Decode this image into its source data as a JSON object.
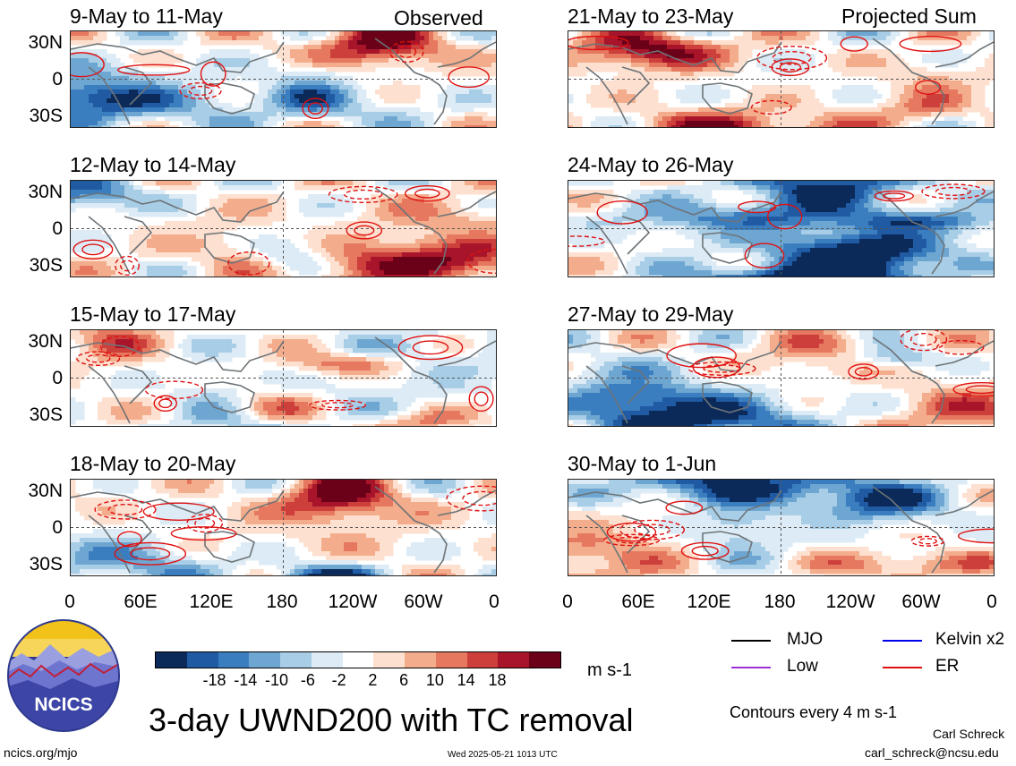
{
  "header": {
    "left_label": "Observed",
    "right_label": "Projected Sum"
  },
  "panels": [
    {
      "title": "9-May to 11-May",
      "seed": 11
    },
    {
      "title": "12-May to 14-May",
      "seed": 23
    },
    {
      "title": "15-May to 17-May",
      "seed": 37
    },
    {
      "title": "18-May to 20-May",
      "seed": 41
    },
    {
      "title": "21-May to 23-May",
      "seed": 53
    },
    {
      "title": "24-May to 26-May",
      "seed": 67
    },
    {
      "title": "27-May to 29-May",
      "seed": 71
    },
    {
      "title": "30-May to 1-Jun",
      "seed": 89
    }
  ],
  "lat_labels": [
    "30N",
    "0",
    "30S"
  ],
  "lon_labels": [
    "0",
    "60E",
    "120E",
    "180",
    "120W",
    "60W",
    "0"
  ],
  "colorbar": {
    "colors": [
      "#0b2a59",
      "#1f5aa3",
      "#3b7ec0",
      "#6ea6d2",
      "#a8cde6",
      "#dcebf5",
      "#ffffff",
      "#fde0cf",
      "#f4ad8c",
      "#e5785f",
      "#cc3f3b",
      "#a8142a",
      "#6b0019"
    ],
    "labels": [
      "-18",
      "-14",
      "-10",
      "-6",
      "-2",
      "2",
      "6",
      "10",
      "14",
      "18"
    ]
  },
  "units": "m s-1",
  "title": "3-day UWND200 with TC removal",
  "legend": {
    "items": [
      {
        "label": "MJO",
        "color": "#000000"
      },
      {
        "label": "Kelvin x2",
        "color": "#0000ee"
      },
      {
        "label": "Low",
        "color": "#9b30d9"
      },
      {
        "label": "ER",
        "color": "#e01010"
      }
    ],
    "note": "Contours every 4 m s-1"
  },
  "footer": {
    "logo_text": "NCICS",
    "url": "ncics.org/mjo",
    "timestamp": "Wed 2025-05-21 1013 UTC",
    "author": "Carl Schreck",
    "email": "carl_schreck@ncsu.edu"
  }
}
